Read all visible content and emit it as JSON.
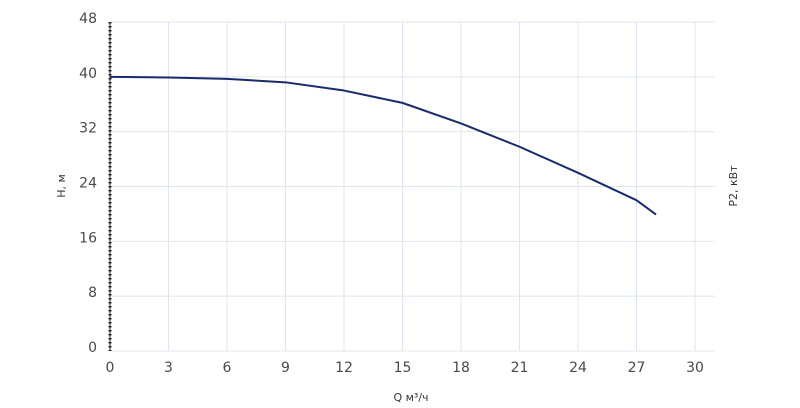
{
  "chart_data": {
    "type": "line",
    "x_label": "Q м³/ч",
    "y_label": "H, м",
    "y2_label": "P2, кВт",
    "x": [
      0,
      3,
      6,
      9,
      12,
      15,
      18,
      21,
      24,
      27,
      28
    ],
    "series": [
      {
        "name": "H",
        "color": "#1b2a6b",
        "values": [
          40,
          39.9,
          39.7,
          39.2,
          38.0,
          36.2,
          33.2,
          29.8,
          26.0,
          22.0,
          19.9
        ]
      }
    ],
    "xlim": [
      0,
      31
    ],
    "xticks": [
      0,
      3,
      6,
      9,
      12,
      15,
      18,
      21,
      24,
      27,
      30
    ],
    "ylim": [
      0,
      48
    ],
    "yticks": [
      0,
      8,
      16,
      24,
      32,
      40,
      48
    ],
    "grid": true
  }
}
